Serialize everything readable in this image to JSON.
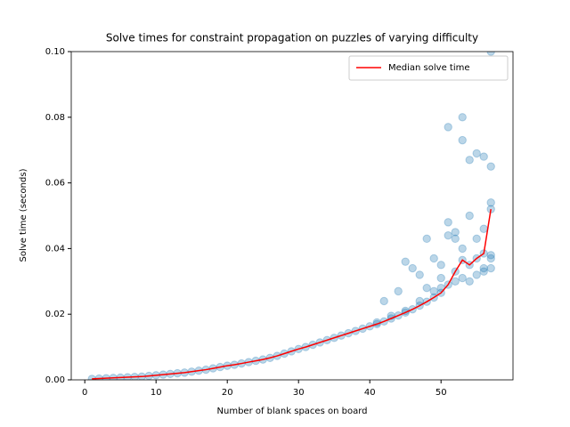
{
  "chart_data": {
    "type": "scatter",
    "title": "Solve times for constraint propagation on puzzles of varying difficulty",
    "xlabel": "Number of blank spaces on board",
    "ylabel": "Solve time (seconds)",
    "xlim": [
      -1.9,
      60.1
    ],
    "ylim": [
      0,
      0.1
    ],
    "xticks": [
      0,
      10,
      20,
      30,
      40,
      50
    ],
    "yticks": [
      {
        "value": 0,
        "label": "0.00"
      },
      {
        "value": 0.02,
        "label": "0.02"
      },
      {
        "value": 0.04,
        "label": "0.04"
      },
      {
        "value": 0.06,
        "label": "0.06"
      },
      {
        "value": 0.08,
        "label": "0.08"
      },
      {
        "value": 0.1,
        "label": "0.10"
      }
    ],
    "legend_loc": "upper right",
    "series": [
      {
        "type": "scatter",
        "color": "#1f77b4",
        "alpha": 0.3,
        "x": [
          1,
          2,
          3,
          4,
          5,
          6,
          7,
          8,
          9,
          10,
          11,
          12,
          13,
          14,
          15,
          16,
          17,
          18,
          19,
          20,
          21,
          22,
          23,
          24,
          25,
          26,
          27,
          28,
          29,
          30,
          31,
          32,
          33,
          34,
          35,
          36,
          37,
          38,
          39,
          40,
          41,
          42,
          43,
          44,
          45,
          46,
          47,
          48,
          49,
          50,
          51,
          52,
          53,
          54,
          55,
          56,
          57,
          41,
          42,
          44,
          45,
          46,
          47,
          48,
          48,
          49,
          50,
          50,
          51,
          51,
          51,
          52,
          52,
          53,
          53,
          53,
          54,
          54,
          55,
          55,
          56,
          56,
          56,
          57,
          57,
          57,
          57,
          57,
          43,
          45,
          47,
          49,
          50,
          52,
          53,
          54,
          55,
          56,
          57
        ],
        "y": [
          0.0003,
          0.0004,
          0.0005,
          0.0006,
          0.0007,
          0.0008,
          0.0009,
          0.001,
          0.0012,
          0.0014,
          0.0016,
          0.0018,
          0.002,
          0.0022,
          0.0025,
          0.0028,
          0.0031,
          0.0035,
          0.0039,
          0.0043,
          0.0046,
          0.005,
          0.0054,
          0.0058,
          0.0062,
          0.0067,
          0.0073,
          0.008,
          0.0087,
          0.0094,
          0.01,
          0.0107,
          0.0114,
          0.0121,
          0.0128,
          0.0135,
          0.0142,
          0.0149,
          0.0156,
          0.0163,
          0.017,
          0.0178,
          0.0187,
          0.0196,
          0.0205,
          0.0215,
          0.0226,
          0.0238,
          0.0251,
          0.0265,
          0.029,
          0.033,
          0.0365,
          0.035,
          0.037,
          0.0385,
          0.052,
          0.0175,
          0.024,
          0.027,
          0.036,
          0.034,
          0.032,
          0.043,
          0.028,
          0.037,
          0.035,
          0.031,
          0.077,
          0.048,
          0.044,
          0.045,
          0.043,
          0.08,
          0.073,
          0.04,
          0.067,
          0.05,
          0.069,
          0.043,
          0.068,
          0.046,
          0.034,
          0.065,
          0.054,
          0.038,
          0.034,
          0.1,
          0.0195,
          0.021,
          0.024,
          0.027,
          0.028,
          0.03,
          0.031,
          0.03,
          0.032,
          0.033,
          0.037
        ]
      },
      {
        "type": "line",
        "name": "Median solve time",
        "color": "#ff0000",
        "x": [
          1,
          2,
          3,
          4,
          5,
          6,
          7,
          8,
          9,
          10,
          11,
          12,
          13,
          14,
          15,
          16,
          17,
          18,
          19,
          20,
          21,
          22,
          23,
          24,
          25,
          26,
          27,
          28,
          29,
          30,
          31,
          32,
          33,
          34,
          35,
          36,
          37,
          38,
          39,
          40,
          41,
          42,
          43,
          44,
          45,
          46,
          47,
          48,
          49,
          50,
          51,
          52,
          53,
          54,
          55,
          56,
          57
        ],
        "y": [
          0.0003,
          0.0004,
          0.0005,
          0.0006,
          0.0007,
          0.0008,
          0.0009,
          0.001,
          0.0012,
          0.0014,
          0.0016,
          0.0018,
          0.002,
          0.0022,
          0.0025,
          0.0028,
          0.0031,
          0.0035,
          0.0039,
          0.0043,
          0.0046,
          0.005,
          0.0054,
          0.0058,
          0.0062,
          0.0067,
          0.0073,
          0.008,
          0.0087,
          0.0094,
          0.01,
          0.0107,
          0.0114,
          0.0121,
          0.0128,
          0.0135,
          0.0142,
          0.0149,
          0.0156,
          0.0163,
          0.017,
          0.0178,
          0.0187,
          0.0196,
          0.0205,
          0.0215,
          0.0226,
          0.0238,
          0.0251,
          0.0265,
          0.029,
          0.033,
          0.0365,
          0.035,
          0.037,
          0.0385,
          0.052
        ]
      }
    ]
  }
}
